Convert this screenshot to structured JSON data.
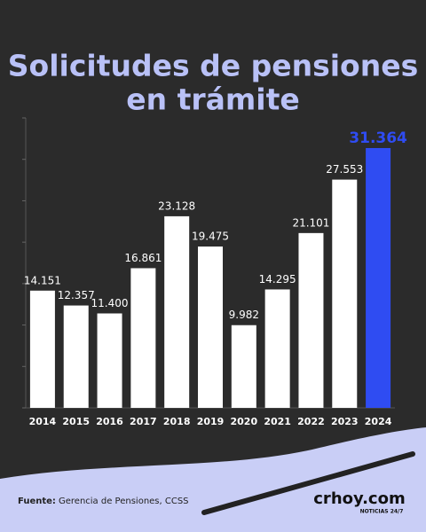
{
  "chart_data": {
    "type": "bar",
    "title": [
      "Solicitudes de pensiones",
      "en trámite"
    ],
    "categories": [
      "2014",
      "2015",
      "2016",
      "2017",
      "2018",
      "2019",
      "2020",
      "2021",
      "2022",
      "2023",
      "2024"
    ],
    "values": [
      14151,
      12357,
      11400,
      16861,
      23128,
      19475,
      9982,
      14295,
      21101,
      27553,
      31364
    ],
    "value_labels": [
      "14.151",
      "12.357",
      "11.400",
      "16.861",
      "23.128",
      "19.475",
      "9.982",
      "14.295",
      "21.101",
      "27.553",
      "31.364"
    ],
    "colors": [
      "#ffffff",
      "#ffffff",
      "#ffffff",
      "#ffffff",
      "#ffffff",
      "#ffffff",
      "#ffffff",
      "#ffffff",
      "#ffffff",
      "#ffffff",
      "#2f4cf2"
    ],
    "ylim": [
      0,
      35000
    ],
    "yticks": [
      0,
      5000,
      10000,
      15000,
      20000,
      25000,
      30000,
      35000
    ]
  },
  "footer": {
    "source_label": "Fuente:",
    "source": "Gerencia de Pensiones, CCSS",
    "brand": "crhoy.com",
    "brand_tagline": "NOTICIAS 24/7"
  }
}
